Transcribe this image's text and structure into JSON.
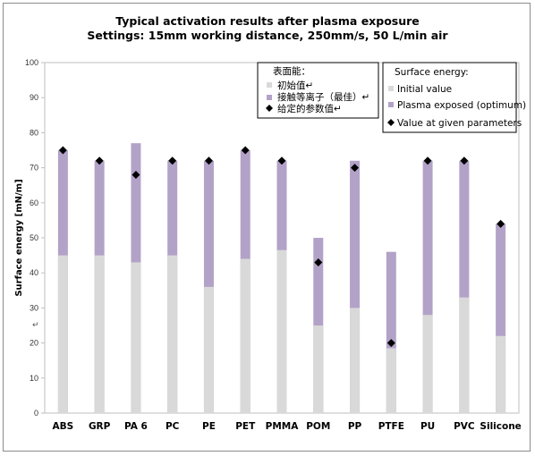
{
  "chart_data": {
    "type": "bar",
    "title_lines": [
      "Typical activation results after plasma exposure",
      "Settings: 15mm working distance, 250mm/s, 50 L/min air"
    ],
    "ylabel": "Surface energy [mN/m]",
    "ylim": [
      0,
      100
    ],
    "yticks": [
      0,
      10,
      20,
      30,
      40,
      50,
      60,
      70,
      80,
      90,
      100
    ],
    "categories": [
      "ABS",
      "GRP",
      "PA 6",
      "PC",
      "PE",
      "PET",
      "PMMA",
      "POM",
      "PP",
      "PTFE",
      "PU",
      "PVC",
      "Silicone"
    ],
    "series": [
      {
        "name": "Initial value",
        "color": "#d9d9d9",
        "values": [
          45,
          45,
          43,
          45,
          36,
          44,
          46.5,
          25,
          30,
          18.5,
          28,
          33,
          22
        ]
      },
      {
        "name": "Plasma exposed (optimum)",
        "color": "#b3a2c7",
        "values": [
          75,
          72,
          77,
          72,
          72,
          75,
          72,
          50,
          72,
          46,
          72,
          72,
          54
        ]
      },
      {
        "name": "Value at given parameters",
        "color": "#000000",
        "marker": "diamond",
        "values": [
          75,
          72,
          68,
          72,
          72,
          75,
          72,
          43,
          70,
          20,
          72,
          72,
          54
        ]
      }
    ],
    "legend": {
      "title": "Surface energy:",
      "placement": "top-right",
      "items": [
        "Initial value",
        "Plasma exposed (optimum)",
        "Value at given parameters"
      ]
    },
    "legend_cn": {
      "title": "表面能：",
      "items": [
        "初始值↵",
        "接触等离子（最佳）↵",
        "给定的参数值↵"
      ]
    },
    "stray_mark": "↵"
  }
}
